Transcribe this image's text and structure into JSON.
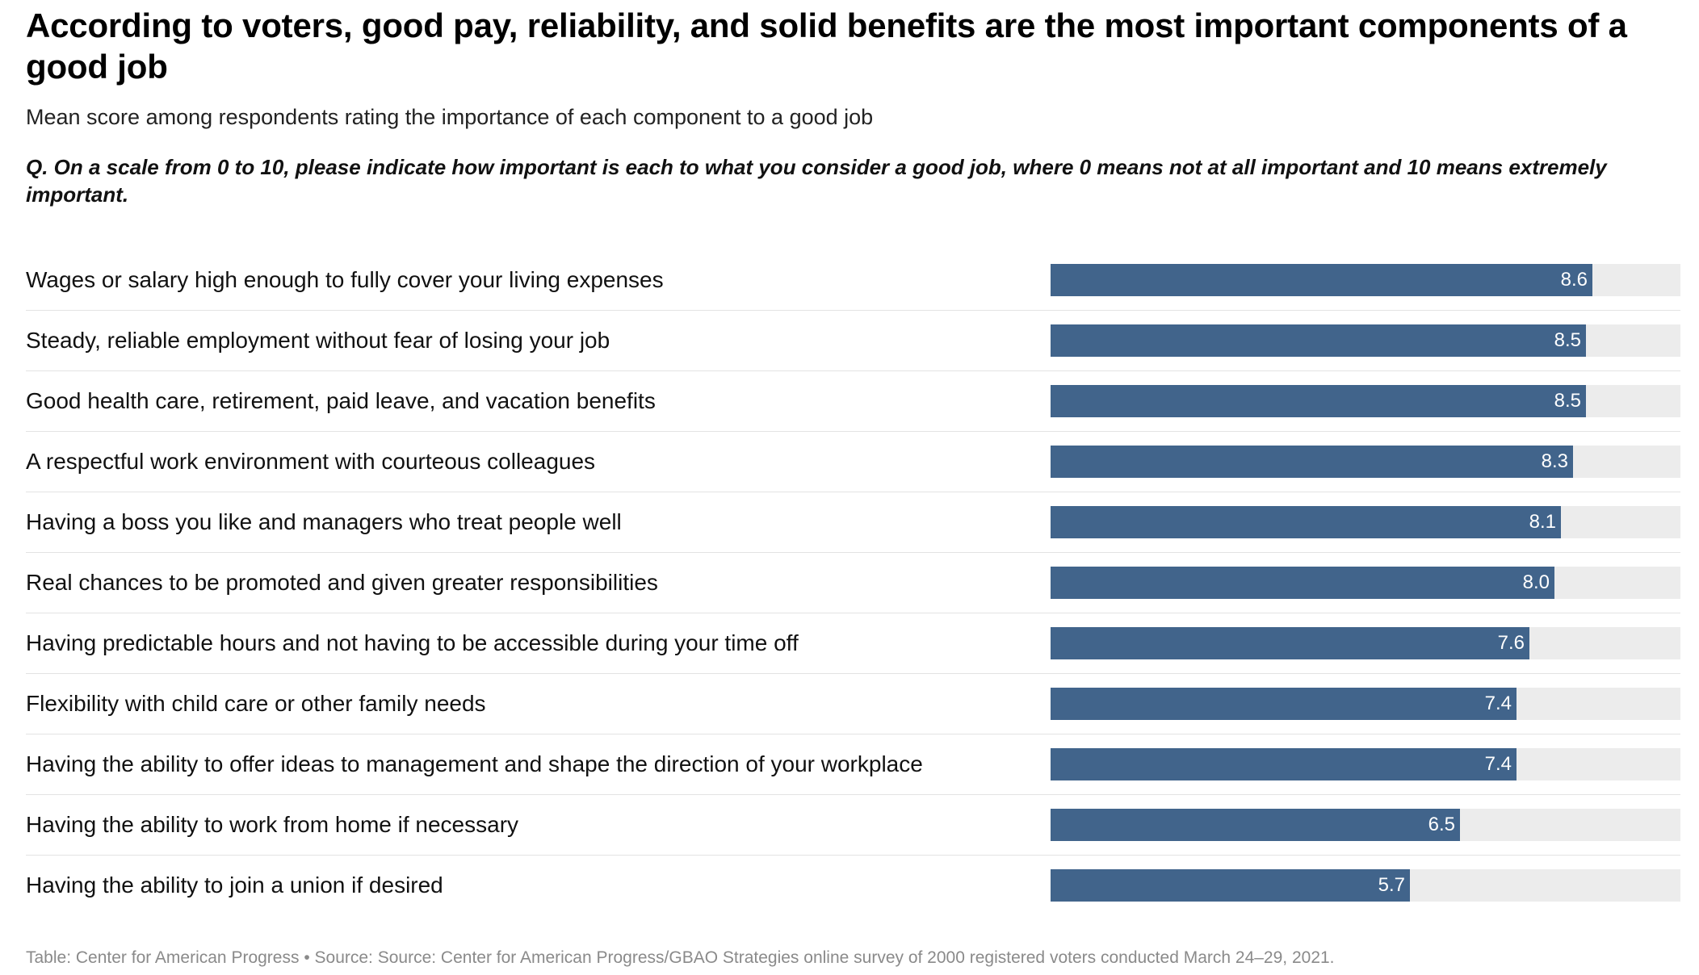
{
  "header": {
    "title": "According to voters, good pay, reliability, and solid benefits are the most important components of a good job",
    "subtitle": "Mean score among respondents rating the importance of each component to a good job",
    "question": "Q. On a scale from 0 to 10, please indicate how important is each to what you consider a good job, where 0 means not at all important and 10 means extremely important."
  },
  "chart_data": {
    "type": "bar",
    "orientation": "horizontal",
    "categories": [
      "Wages or salary high enough to fully cover your living expenses",
      "Steady, reliable employment without fear of losing your job",
      "Good health care, retirement, paid leave, and vacation benefits",
      "A respectful work environment with courteous colleagues",
      "Having a boss you like and managers who treat people well",
      "Real chances to be promoted and given greater responsibilities",
      "Having predictable hours and not having to be accessible during your time off",
      "Flexibility with child care or other family needs",
      "Having the ability to offer ideas to management and shape the direction of your workplace",
      "Having the ability to work from home if necessary",
      "Having the ability to join a union if desired"
    ],
    "values": [
      8.6,
      8.5,
      8.5,
      8.3,
      8.1,
      8.0,
      7.6,
      7.4,
      7.4,
      6.5,
      5.7
    ],
    "value_labels": [
      "8.6",
      "8.5",
      "8.5",
      "8.3",
      "8.1",
      "8.0",
      "7.6",
      "7.4",
      "7.4",
      "6.5",
      "5.7"
    ],
    "xlim": [
      0,
      10
    ],
    "grid": false,
    "legend": "none",
    "colors": {
      "bar": "#41648b",
      "track": "#ececec",
      "value_text": "#ffffff"
    }
  },
  "footer": {
    "source": "Table: Center for American Progress • Source: Source: Center for American Progress/GBAO Strategies online survey of 2000 registered voters conducted March 24–29, 2021."
  }
}
